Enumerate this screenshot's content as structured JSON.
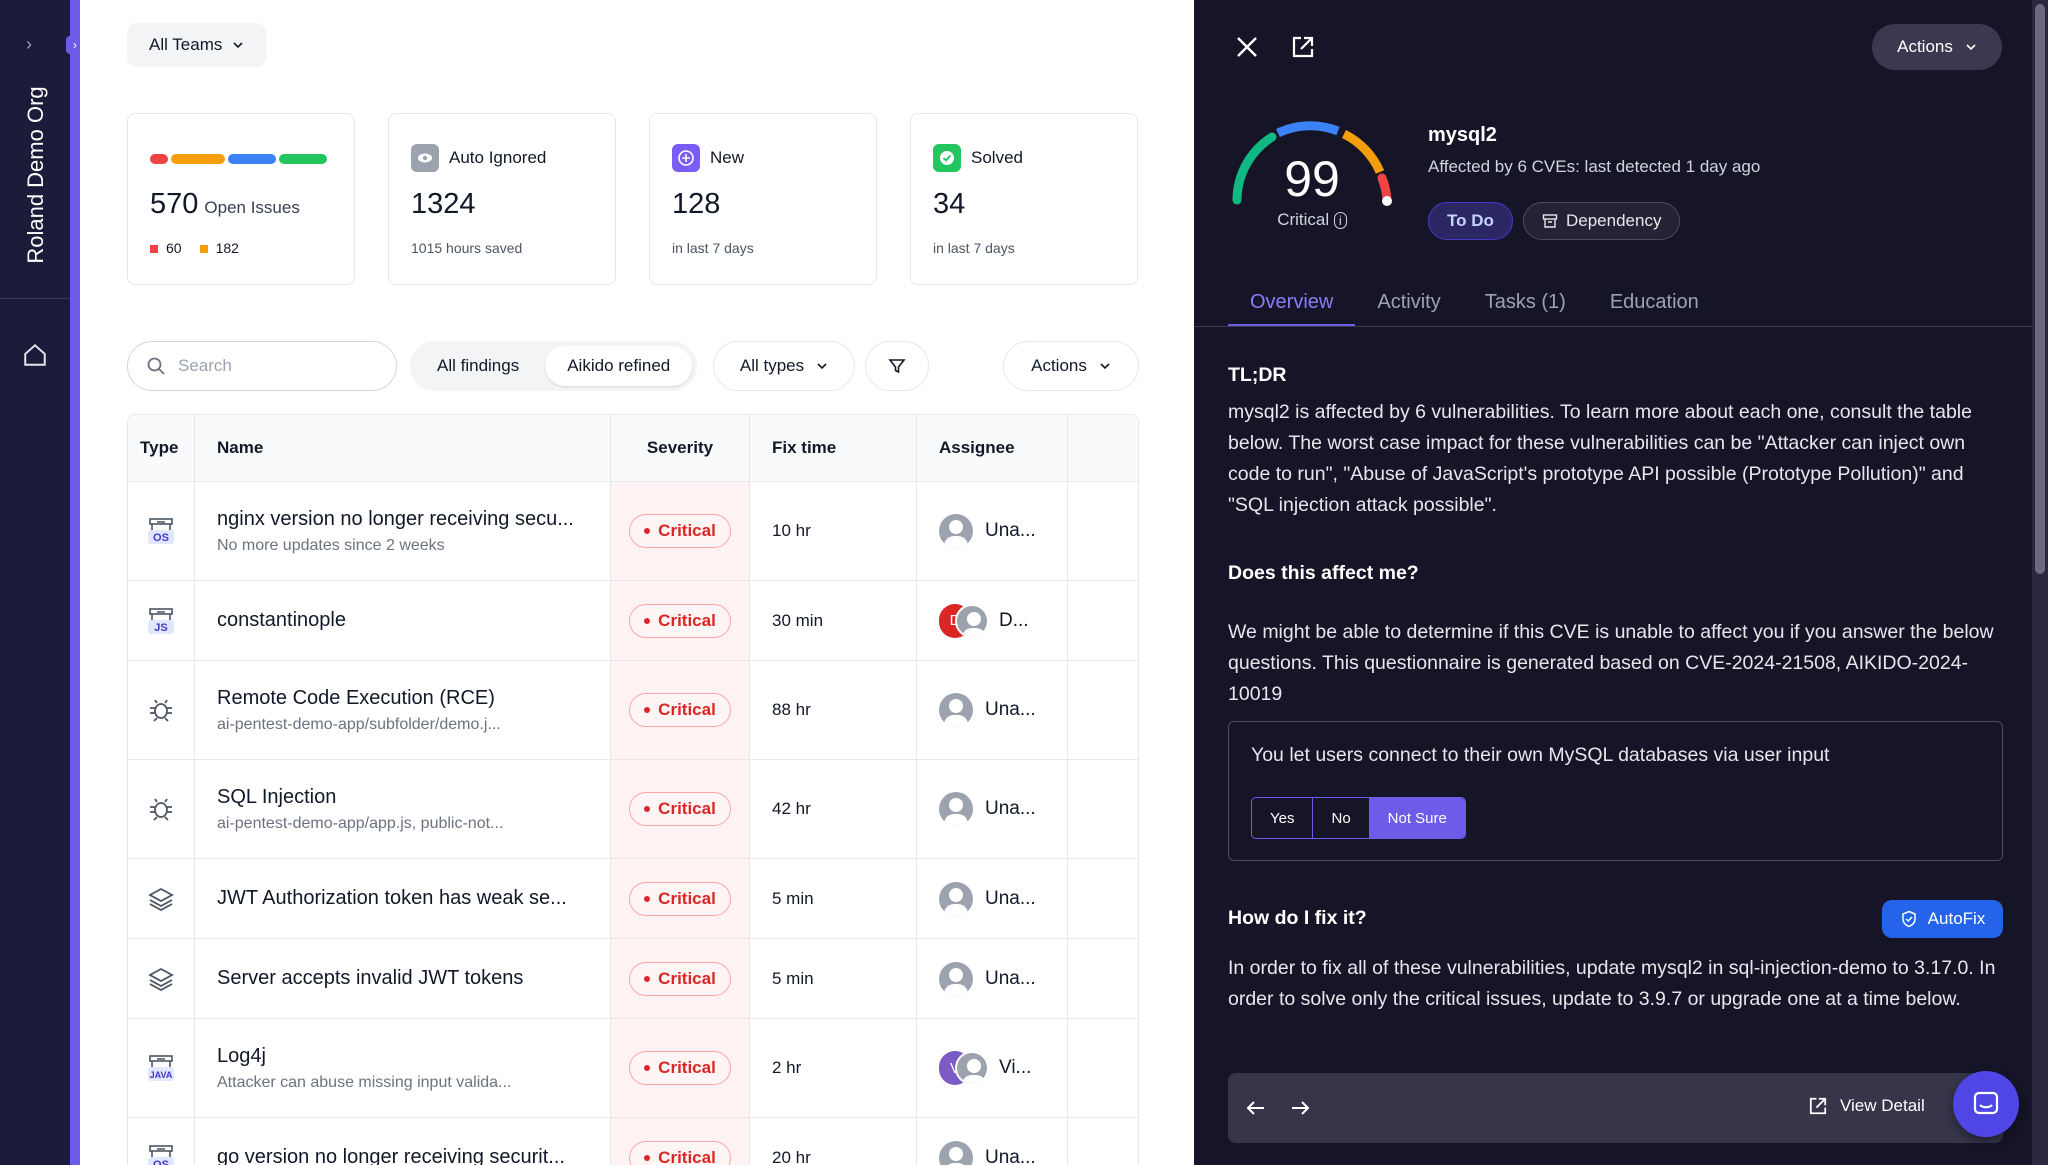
{
  "sidebar": {
    "org_name": "Roland Demo Org"
  },
  "main": {
    "team_filter": "All Teams",
    "cards": {
      "open": {
        "count": "570",
        "label": "Open Issues",
        "critical": "60",
        "high": "182"
      },
      "auto_ignored": {
        "title": "Auto Ignored",
        "count": "1324",
        "sub": "1015 hours saved"
      },
      "new": {
        "title": "New",
        "count": "128",
        "sub": "in last 7 days"
      },
      "solved": {
        "title": "Solved",
        "count": "34",
        "sub": "in last 7 days"
      }
    },
    "search_placeholder": "Search",
    "segment": {
      "all": "All findings",
      "refined": "Aikido refined"
    },
    "types_filter": "All types",
    "actions_label": "Actions",
    "table": {
      "headers": {
        "type": "Type",
        "name": "Name",
        "severity": "Severity",
        "fix_time": "Fix time",
        "assignee": "Assignee"
      },
      "rows": [
        {
          "icon": "os-package-icon",
          "name": "nginx version no longer receiving secu...",
          "sub": "No more updates since 2 weeks",
          "severity": "Critical",
          "fix": "10 hr",
          "assignee": "Una..."
        },
        {
          "icon": "js-package-icon",
          "name": "constantinople",
          "sub": "",
          "severity": "Critical",
          "fix": "30 min",
          "assignee": "D...",
          "avatar_letter": "D",
          "avatar_color": "#dc2626"
        },
        {
          "icon": "bug-icon",
          "name": "Remote Code Execution (RCE)",
          "sub": "ai-pentest-demo-app/subfolder/demo.j...",
          "severity": "Critical",
          "fix": "88 hr",
          "assignee": "Una..."
        },
        {
          "icon": "bug-icon",
          "name": "SQL Injection",
          "sub": "ai-pentest-demo-app/app.js, public-not...",
          "severity": "Critical",
          "fix": "42 hr",
          "assignee": "Una..."
        },
        {
          "icon": "layers-icon",
          "name": "JWT Authorization token has weak se...",
          "sub": "",
          "severity": "Critical",
          "fix": "5 min",
          "assignee": "Una..."
        },
        {
          "icon": "layers-icon",
          "name": "Server accepts invalid JWT tokens",
          "sub": "",
          "severity": "Critical",
          "fix": "5 min",
          "assignee": "Una..."
        },
        {
          "icon": "java-package-icon",
          "name": "Log4j",
          "sub": "Attacker can abuse missing input valida...",
          "severity": "Critical",
          "fix": "2 hr",
          "assignee": "Vi...",
          "avatar_letter": "V",
          "avatar_color": "#7c5cc4"
        },
        {
          "icon": "os-package-icon",
          "name": "go version no longer receiving securit...",
          "sub": "",
          "severity": "Critical",
          "fix": "20 hr",
          "assignee": "Una..."
        }
      ]
    }
  },
  "panel": {
    "actions_label": "Actions",
    "score": "99",
    "score_label": "Critical",
    "package": "mysql2",
    "package_sub": "Affected by 6 CVEs: last detected 1 day ago",
    "status_tag": "To Do",
    "type_tag": "Dependency",
    "tabs": [
      "Overview",
      "Activity",
      "Tasks (1)",
      "Education"
    ],
    "tldr_title": "TL;DR",
    "tldr_text": "mysql2 is affected by 6 vulnerabilities. To learn more about each one, consult the table below. The worst case impact for these vulnerabilities can be \"Attacker can inject own code to run\", \"Abuse of JavaScript's prototype API possible (Prototype Pollution)\" and \"SQL injection attack possible\".",
    "affect_title": "Does this affect me?",
    "affect_text": "We might be able to determine if this CVE is unable to affect you if you answer the below questions. This questionnaire is generated based on CVE-2024-21508, AIKIDO-2024-10019",
    "question": "You let users connect to their own MySQL databases via user input",
    "answers": [
      "Yes",
      "No",
      "Not Sure"
    ],
    "fix_title": "How do I fix it?",
    "autofix_label": "AutoFix",
    "fix_text": "In order to fix all of these vulnerabilities, update mysql2 in sql-injection-demo to 3.17.0. In order to solve only the critical issues, update to 3.9.7 or upgrade one at a time below.",
    "view_detail": "View Detail"
  },
  "colors": {
    "accent": "#6d5ce8",
    "critical": "#dc2626",
    "high": "#f59e0b",
    "panel_bg": "#161528"
  }
}
